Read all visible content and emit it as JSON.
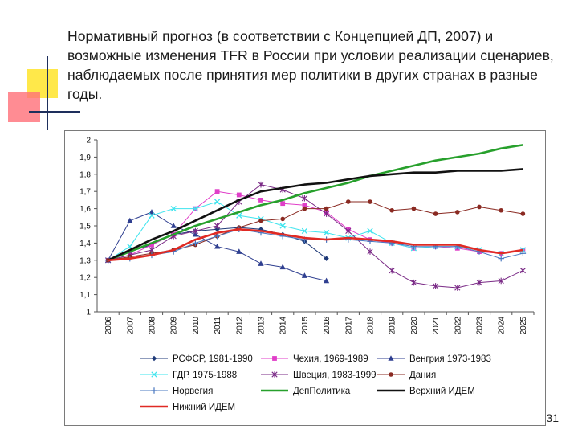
{
  "slide": {
    "title": "Нормативный прогноз (в соответствии с Концепцией ДП, 2007) и возможные изменения TFR в России при условии реализации сценариев, наблюдаемых после принятия мер политики в других странах в разные годы.",
    "number": "31"
  },
  "chart_data": {
    "type": "line",
    "title": "",
    "xlabel": "",
    "ylabel": "",
    "x": [
      "2006",
      "2007",
      "2008",
      "2009",
      "2010",
      "2011",
      "2012",
      "2013",
      "2014",
      "2015",
      "2016",
      "2017",
      "2018",
      "2019",
      "2020",
      "2021",
      "2022",
      "2023",
      "2024",
      "2025"
    ],
    "ylim": [
      1,
      2
    ],
    "yticks": [
      "1",
      "1,1",
      "1,2",
      "1,3",
      "1,4",
      "1,5",
      "1,6",
      "1,7",
      "1,8",
      "1,9",
      "2"
    ],
    "grid": false,
    "legend_position": "bottom",
    "series": [
      {
        "name": "РСФСР, 1981-1990",
        "color": "#1f3a78",
        "marker": "diamond",
        "width": 1,
        "values": [
          1.3,
          1.35,
          1.39,
          1.45,
          1.47,
          1.48,
          1.49,
          1.48,
          1.45,
          1.41,
          1.31,
          null,
          null,
          null,
          null,
          null,
          null,
          null,
          null,
          null
        ]
      },
      {
        "name": "Чехия, 1969-1989",
        "color": "#e03ec8",
        "marker": "square",
        "width": 1,
        "values": [
          1.3,
          1.33,
          1.39,
          1.45,
          1.6,
          1.7,
          1.68,
          1.65,
          1.63,
          1.62,
          1.58,
          1.48,
          1.42,
          1.4,
          1.37,
          1.38,
          1.37,
          1.35,
          1.34,
          1.36
        ]
      },
      {
        "name": "Венгрия 1973-1983",
        "color": "#2f3f90",
        "marker": "triangle",
        "width": 1,
        "values": [
          1.3,
          1.53,
          1.58,
          1.5,
          1.45,
          1.38,
          1.35,
          1.28,
          1.26,
          1.21,
          1.18,
          null,
          null,
          null,
          null,
          null,
          null,
          null,
          null,
          null
        ]
      },
      {
        "name": "ГДР, 1975-1988",
        "color": "#3ee4ee",
        "marker": "x",
        "width": 1,
        "values": [
          1.3,
          1.38,
          1.56,
          1.6,
          1.6,
          1.64,
          1.56,
          1.54,
          1.5,
          1.47,
          1.46,
          1.43,
          1.47,
          1.4,
          1.37,
          1.38,
          1.38,
          1.36,
          1.34,
          1.36
        ]
      },
      {
        "name": "Швеция, 1983-1999",
        "color": "#7a2a86",
        "marker": "star",
        "width": 1,
        "values": [
          1.3,
          1.33,
          1.36,
          1.44,
          1.47,
          1.5,
          1.64,
          1.74,
          1.71,
          1.66,
          1.57,
          1.47,
          1.35,
          1.24,
          1.17,
          1.15,
          1.14,
          1.17,
          1.18,
          1.24
        ]
      },
      {
        "name": "Дания",
        "color": "#8a2a22",
        "marker": "circle",
        "width": 1,
        "values": [
          1.3,
          1.32,
          1.34,
          1.36,
          1.39,
          1.44,
          1.49,
          1.53,
          1.54,
          1.6,
          1.6,
          1.64,
          1.64,
          1.59,
          1.6,
          1.57,
          1.58,
          1.61,
          1.59,
          1.57
        ]
      },
      {
        "name": "Норвегия",
        "color": "#4a78c0",
        "marker": "plus",
        "width": 1,
        "values": [
          1.3,
          1.31,
          1.33,
          1.35,
          1.4,
          1.44,
          1.48,
          1.46,
          1.44,
          1.42,
          1.42,
          1.42,
          1.41,
          1.4,
          1.38,
          1.38,
          1.38,
          1.35,
          1.31,
          1.34
        ]
      },
      {
        "name": "ДепПолитика",
        "color": "#27a02c",
        "marker": "none",
        "width": 2.6,
        "values": [
          1.3,
          1.35,
          1.4,
          1.45,
          1.5,
          1.54,
          1.58,
          1.62,
          1.65,
          1.69,
          1.72,
          1.75,
          1.79,
          1.82,
          1.85,
          1.88,
          1.9,
          1.92,
          1.95,
          1.97
        ]
      },
      {
        "name": "Верхний ИДЕМ",
        "color": "#111111",
        "marker": "none",
        "width": 2.6,
        "values": [
          1.3,
          1.36,
          1.42,
          1.47,
          1.53,
          1.59,
          1.65,
          1.7,
          1.72,
          1.74,
          1.75,
          1.77,
          1.79,
          1.8,
          1.81,
          1.81,
          1.82,
          1.82,
          1.82,
          1.83
        ]
      },
      {
        "name": "Нижний ИДЕМ",
        "color": "#e02a24",
        "marker": "none",
        "width": 2.6,
        "values": [
          1.3,
          1.31,
          1.33,
          1.36,
          1.42,
          1.46,
          1.48,
          1.47,
          1.45,
          1.43,
          1.42,
          1.43,
          1.42,
          1.41,
          1.39,
          1.39,
          1.39,
          1.36,
          1.34,
          1.36
        ]
      }
    ]
  }
}
